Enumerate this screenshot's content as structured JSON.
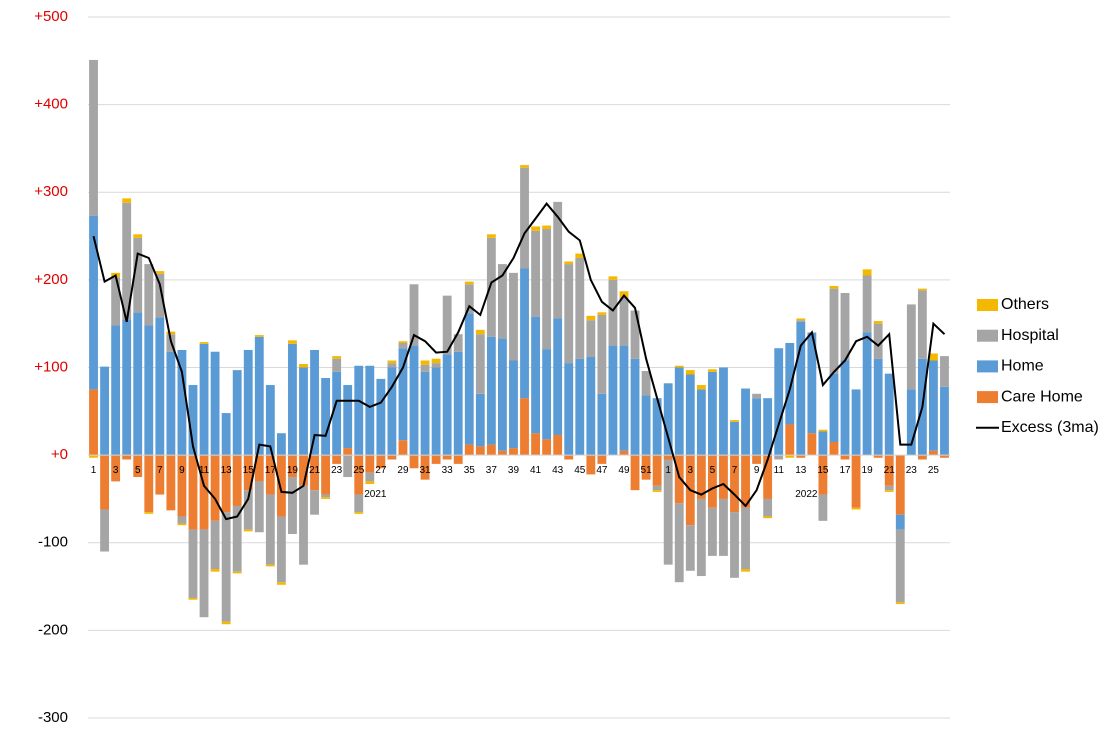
{
  "chart_data": {
    "type": "bar",
    "stacked": true,
    "categories": [
      "1",
      null,
      "3",
      null,
      "5",
      null,
      "7",
      null,
      "9",
      null,
      "11",
      null,
      "13",
      null,
      "15",
      null,
      "17",
      null,
      "19",
      null,
      "21",
      null,
      "23",
      null,
      "25",
      null,
      "27",
      null,
      "29",
      null,
      "31",
      null,
      "33",
      null,
      "35",
      null,
      "37",
      null,
      "39",
      null,
      "41",
      null,
      "43",
      null,
      "45",
      null,
      "47",
      null,
      "49",
      null,
      "51",
      null,
      "1",
      null,
      "3",
      null,
      "5",
      null,
      "7",
      null,
      "9",
      null,
      "11",
      null,
      "13",
      null,
      "15",
      null,
      "17",
      null,
      "19",
      null,
      "21",
      null,
      "23",
      null,
      "25",
      null
    ],
    "x_groups": [
      "2021",
      "2022"
    ],
    "series": [
      {
        "name": "Care Home",
        "color": "#ed7d31",
        "values": [
          75,
          -62,
          -30,
          -5,
          -25,
          -65,
          -45,
          -63,
          -70,
          -85,
          -85,
          -75,
          -65,
          -58,
          -40,
          -30,
          -45,
          -70,
          -25,
          -35,
          -40,
          -45,
          -10,
          8,
          -45,
          -20,
          -15,
          -5,
          17,
          -15,
          -28,
          -10,
          -5,
          -10,
          12,
          10,
          12,
          5,
          8,
          65,
          25,
          18,
          23,
          -5,
          0,
          -22,
          -10,
          0,
          5,
          -40,
          -28,
          -35,
          -5,
          -55,
          -80,
          -50,
          -60,
          -50,
          -65,
          -60,
          -10,
          -50,
          0,
          35,
          -3,
          25,
          -45,
          15,
          -5,
          -60,
          0,
          -3,
          -35,
          -68,
          0,
          -5,
          5,
          -3
        ]
      },
      {
        "name": "Home",
        "color": "#5b9bd5",
        "values": [
          198,
          101,
          148,
          155,
          163,
          148,
          157,
          118,
          120,
          80,
          127,
          118,
          48,
          97,
          120,
          135,
          80,
          25,
          127,
          100,
          120,
          88,
          95,
          72,
          102,
          102,
          87,
          100,
          105,
          125,
          95,
          100,
          115,
          118,
          150,
          60,
          123,
          128,
          100,
          148,
          133,
          103,
          133,
          105,
          110,
          112,
          70,
          125,
          120,
          110,
          68,
          65,
          82,
          100,
          92,
          75,
          95,
          100,
          38,
          76,
          65,
          65,
          122,
          93,
          152,
          115,
          27,
          78,
          108,
          75,
          140,
          110,
          93,
          -17,
          75,
          110,
          103,
          78
        ]
      },
      {
        "name": "Hospital",
        "color": "#a5a5a5",
        "values": [
          178,
          -48,
          55,
          133,
          85,
          70,
          50,
          20,
          -8,
          -78,
          -100,
          -55,
          -125,
          -75,
          -45,
          -58,
          -80,
          -75,
          -65,
          -90,
          -28,
          -3,
          15,
          -25,
          -20,
          -10,
          0,
          5,
          6,
          70,
          8,
          5,
          67,
          20,
          33,
          68,
          113,
          85,
          100,
          115,
          98,
          137,
          133,
          113,
          115,
          42,
          90,
          75,
          55,
          55,
          28,
          -5,
          -120,
          -90,
          -52,
          -88,
          -55,
          -65,
          -75,
          -70,
          5,
          -20,
          -5,
          0,
          2,
          0,
          -30,
          97,
          77,
          0,
          65,
          40,
          -5,
          -83,
          97,
          78,
          0,
          35
        ]
      },
      {
        "name": "Others",
        "color": "#f5b800",
        "values": [
          -3,
          0,
          5,
          5,
          4,
          -2,
          3,
          3,
          -2,
          -2,
          2,
          -3,
          -3,
          -2,
          -2,
          2,
          -2,
          -3,
          4,
          4,
          0,
          -2,
          3,
          0,
          -2,
          -3,
          0,
          3,
          2,
          0,
          5,
          5,
          0,
          0,
          3,
          5,
          4,
          0,
          0,
          3,
          5,
          4,
          0,
          3,
          5,
          5,
          3,
          4,
          7,
          0,
          0,
          -2,
          0,
          2,
          5,
          5,
          3,
          0,
          2,
          -3,
          0,
          -2,
          0,
          -3,
          2,
          0,
          2,
          3,
          0,
          -2,
          7,
          3,
          -2,
          -2,
          0,
          2,
          8,
          0
        ]
      },
      {
        "name": "Excess (3ma)",
        "type": "line",
        "color": "#000000",
        "values": [
          250,
          198,
          205,
          152,
          230,
          225,
          195,
          130,
          95,
          10,
          -35,
          -50,
          -73,
          -70,
          -50,
          12,
          10,
          -42,
          -43,
          -35,
          23,
          22,
          62,
          62,
          62,
          55,
          60,
          78,
          100,
          137,
          130,
          117,
          118,
          140,
          170,
          160,
          197,
          205,
          225,
          253,
          270,
          287,
          272,
          255,
          245,
          200,
          175,
          165,
          182,
          168,
          110,
          65,
          20,
          -25,
          -40,
          -45,
          -38,
          -33,
          -45,
          -58,
          -40,
          -5,
          35,
          75,
          125,
          140,
          80,
          95,
          108,
          130,
          135,
          125,
          138,
          12,
          12,
          55,
          150,
          138
        ]
      }
    ],
    "ylim": [
      -300,
      500
    ],
    "yticks": [
      {
        "value": -300,
        "label": "-300"
      },
      {
        "value": -200,
        "label": "-200"
      },
      {
        "value": -100,
        "label": "-100"
      },
      {
        "value": 0,
        "label": "+0"
      },
      {
        "value": 100,
        "label": "+100"
      },
      {
        "value": 200,
        "label": "+200"
      },
      {
        "value": 300,
        "label": "+300"
      },
      {
        "value": 400,
        "label": "+400"
      },
      {
        "value": 500,
        "label": "+500"
      }
    ],
    "ytick_positive_color": "#e00000",
    "grid": true,
    "legend": "right"
  }
}
